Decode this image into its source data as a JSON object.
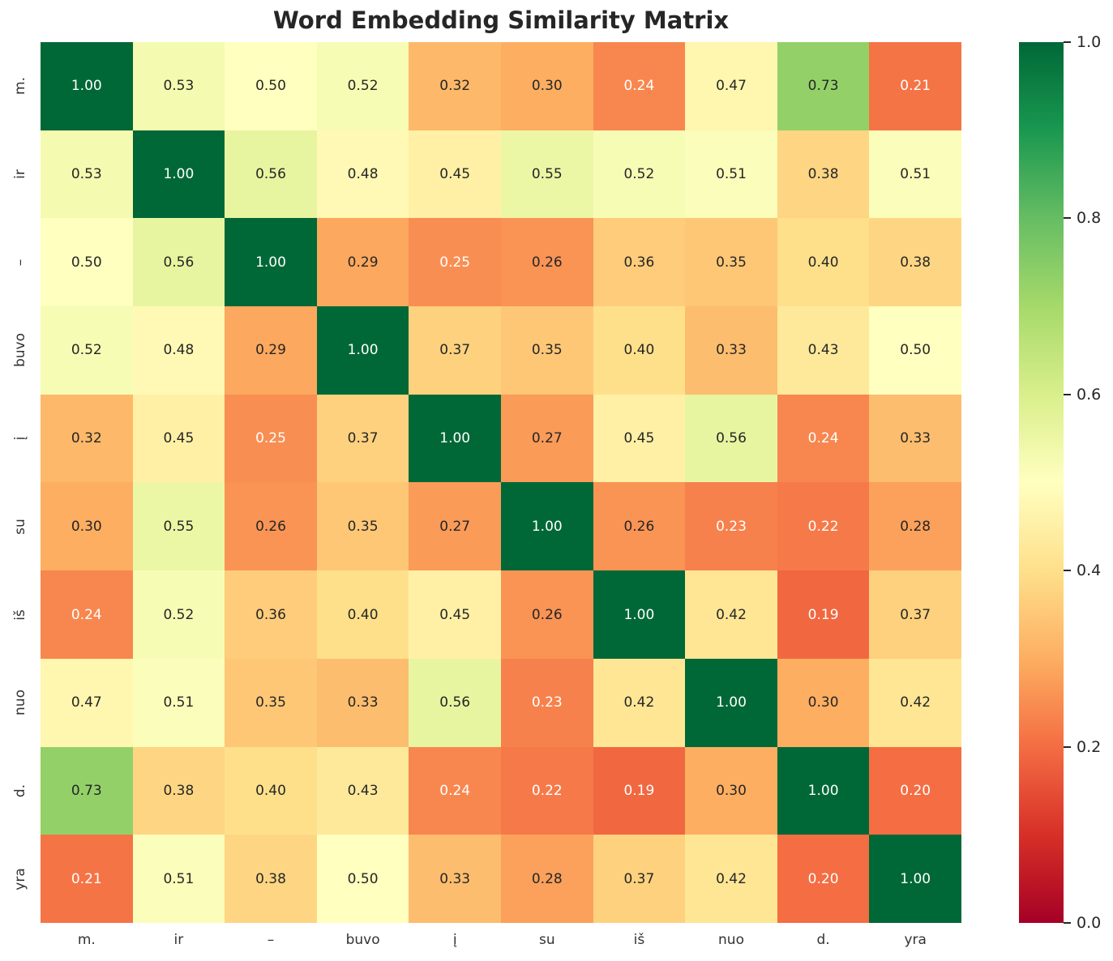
{
  "title": "Word Embedding Similarity Matrix",
  "chart_data": {
    "type": "heatmap",
    "title": "Word Embedding Similarity Matrix",
    "x_labels": [
      "m.",
      "ir",
      "–",
      "buvo",
      "į",
      "su",
      "iš",
      "nuo",
      "d.",
      "yra"
    ],
    "y_labels": [
      "m.",
      "ir",
      "–",
      "buvo",
      "į",
      "su",
      "iš",
      "nuo",
      "d.",
      "yra"
    ],
    "values": [
      [
        1.0,
        0.53,
        0.5,
        0.52,
        0.32,
        0.3,
        0.24,
        0.47,
        0.73,
        0.21
      ],
      [
        0.53,
        1.0,
        0.56,
        0.48,
        0.45,
        0.55,
        0.52,
        0.51,
        0.38,
        0.51
      ],
      [
        0.5,
        0.56,
        1.0,
        0.29,
        0.25,
        0.26,
        0.36,
        0.35,
        0.4,
        0.38
      ],
      [
        0.52,
        0.48,
        0.29,
        1.0,
        0.37,
        0.35,
        0.4,
        0.33,
        0.43,
        0.5
      ],
      [
        0.32,
        0.45,
        0.25,
        0.37,
        1.0,
        0.27,
        0.45,
        0.56,
        0.24,
        0.33
      ],
      [
        0.3,
        0.55,
        0.26,
        0.35,
        0.27,
        1.0,
        0.26,
        0.23,
        0.22,
        0.28
      ],
      [
        0.24,
        0.52,
        0.36,
        0.4,
        0.45,
        0.26,
        1.0,
        0.42,
        0.19,
        0.37
      ],
      [
        0.47,
        0.51,
        0.35,
        0.33,
        0.56,
        0.23,
        0.42,
        1.0,
        0.3,
        0.42
      ],
      [
        0.73,
        0.38,
        0.4,
        0.43,
        0.24,
        0.22,
        0.19,
        0.3,
        1.0,
        0.2
      ],
      [
        0.21,
        0.51,
        0.38,
        0.5,
        0.33,
        0.28,
        0.37,
        0.42,
        0.2,
        1.0
      ]
    ],
    "value_decimals": 2,
    "vmin": 0.0,
    "vmax": 1.0,
    "colormap_name": "RdYlGn",
    "colormap_stops": [
      "#a50026",
      "#d73027",
      "#f46d43",
      "#fdae61",
      "#fee08b",
      "#ffffbf",
      "#d9ef8b",
      "#a6d96a",
      "#66bd63",
      "#1a9850",
      "#006837"
    ],
    "colorbar_tick_labels": [
      "0.0",
      "0.2",
      "0.4",
      "0.6",
      "0.8",
      "1.0"
    ],
    "colorbar_tick_values": [
      0.0,
      0.2,
      0.4,
      0.6,
      0.8,
      1.0
    ],
    "annotation_dark_color": "#262626",
    "annotation_light_color": "#ffffff",
    "tick_label_color": "#333333",
    "legend_position": "right",
    "grid": false
  }
}
